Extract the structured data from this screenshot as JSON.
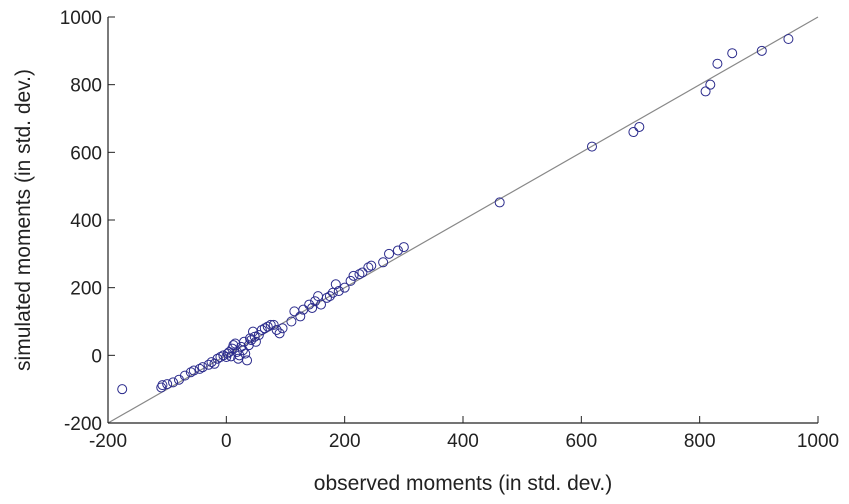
{
  "chart_data": {
    "type": "scatter",
    "xlabel": "observed moments (in std. dev.)",
    "ylabel": "simulated moments (in std. dev.)",
    "xlim": [
      -200,
      1000
    ],
    "ylim": [
      -200,
      1000
    ],
    "xticks": [
      -200,
      0,
      200,
      400,
      600,
      800,
      1000
    ],
    "yticks": [
      -200,
      0,
      200,
      400,
      600,
      800,
      1000
    ],
    "reference_line": true,
    "series": [
      {
        "color": "#2b2b8c",
        "x": [
          -176,
          -110,
          -108,
          -100,
          -90,
          -80,
          -70,
          -60,
          -55,
          -45,
          -40,
          -30,
          -25,
          -20,
          -15,
          -10,
          -5,
          0,
          2,
          5,
          8,
          10,
          12,
          15,
          18,
          20,
          22,
          25,
          28,
          30,
          32,
          35,
          38,
          40,
          42,
          45,
          48,
          50,
          55,
          60,
          65,
          70,
          75,
          80,
          85,
          90,
          95,
          110,
          115,
          125,
          130,
          140,
          145,
          150,
          155,
          160,
          170,
          175,
          180,
          185,
          190,
          200,
          210,
          215,
          225,
          230,
          240,
          245,
          265,
          275,
          290,
          300,
          462,
          618,
          688,
          698,
          810,
          818,
          830,
          855,
          905,
          950
        ],
        "y": [
          -100,
          -95,
          -88,
          -85,
          -80,
          -72,
          -60,
          -50,
          -45,
          -40,
          -35,
          -28,
          -20,
          -25,
          -10,
          -5,
          0,
          -5,
          5,
          10,
          -3,
          20,
          30,
          35,
          10,
          -10,
          0,
          25,
          15,
          40,
          5,
          -15,
          30,
          50,
          45,
          70,
          55,
          40,
          60,
          75,
          80,
          85,
          90,
          90,
          75,
          65,
          80,
          100,
          130,
          115,
          135,
          150,
          140,
          160,
          175,
          150,
          170,
          175,
          185,
          210,
          190,
          200,
          220,
          235,
          240,
          245,
          260,
          265,
          275,
          300,
          310,
          320,
          452,
          617,
          660,
          675,
          780,
          800,
          862,
          893,
          900,
          935
        ]
      }
    ]
  }
}
